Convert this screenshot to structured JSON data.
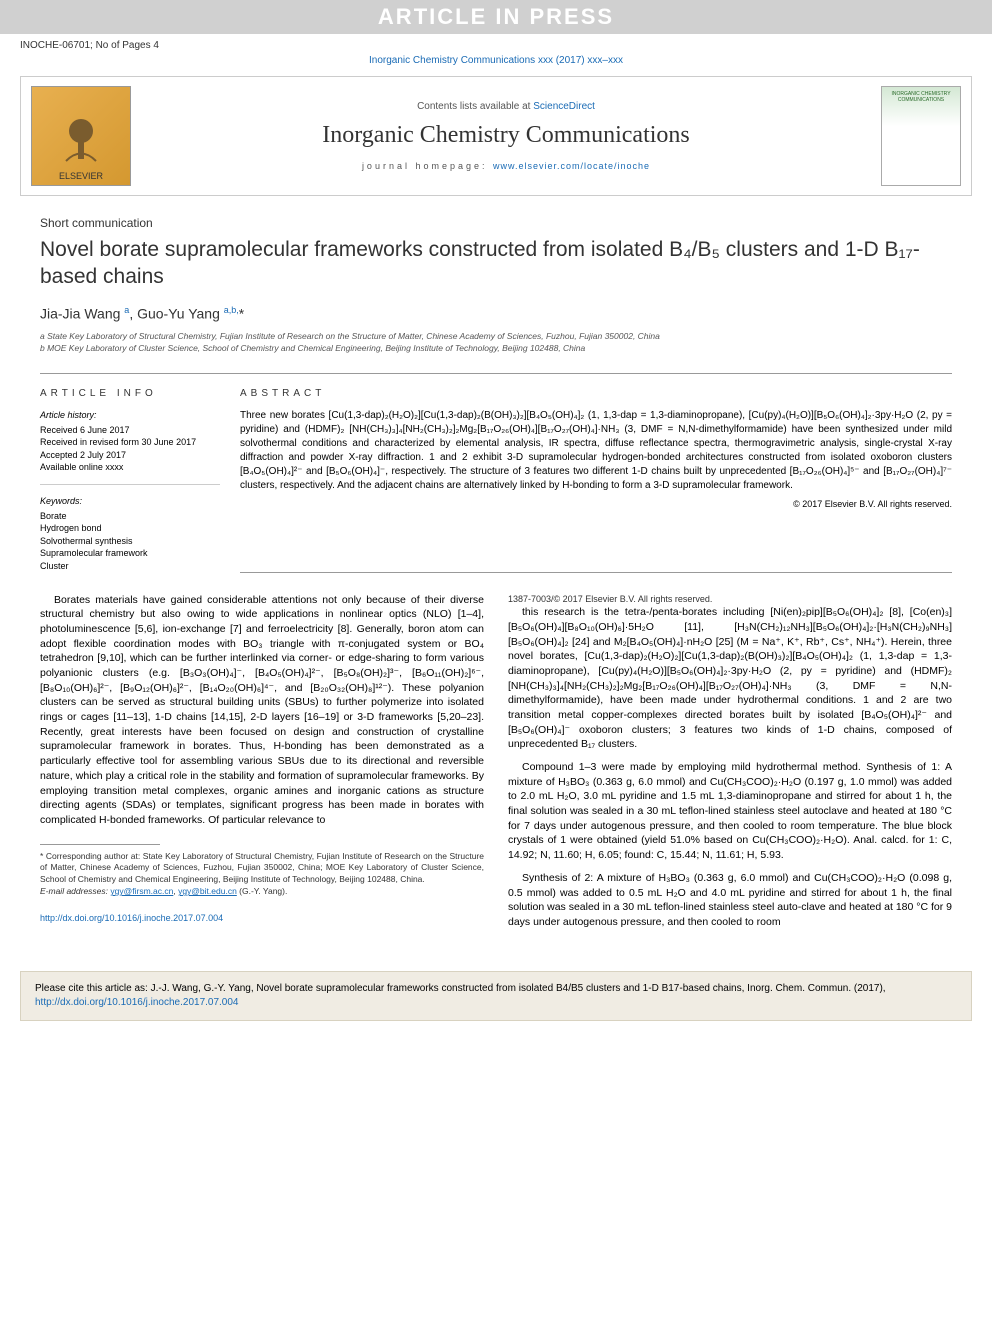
{
  "banner_text": "ARTICLE IN PRESS",
  "header": {
    "article_id": "INOCHE-06701; No of Pages 4",
    "journal_ref": "Inorganic Chemistry Communications xxx (2017) xxx–xxx"
  },
  "journal_banner": {
    "elsevier_label": "ELSEVIER",
    "contents_prefix": "Contents lists available at ",
    "contents_link": "ScienceDirect",
    "journal_name": "Inorganic Chemistry Communications",
    "homepage_prefix": "journal homepage: ",
    "homepage_url": "www.elsevier.com/locate/inoche",
    "cover_text": "INORGANIC CHEMISTRY COMMUNICATIONS"
  },
  "article": {
    "type": "Short communication",
    "title": "Novel borate supramolecular frameworks constructed from isolated B₄/B₅ clusters and 1-D B₁₇-based chains",
    "authors_html": "Jia-Jia Wang <sup>a</sup>, Guo-Yu Yang <sup>a,b,</sup>*",
    "affiliations": [
      "a State Key Laboratory of Structural Chemistry, Fujian Institute of Research on the Structure of Matter, Chinese Academy of Sciences, Fuzhou, Fujian 350002, China",
      "b MOE Key Laboratory of Cluster Science, School of Chemistry and Chemical Engineering, Beijing Institute of Technology, Beijing 102488, China"
    ]
  },
  "article_info": {
    "heading": "ARTICLE INFO",
    "history_label": "Article history:",
    "history": [
      "Received 6 June 2017",
      "Received in revised form 30 June 2017",
      "Accepted 2 July 2017",
      "Available online xxxx"
    ],
    "keywords_label": "Keywords:",
    "keywords": [
      "Borate",
      "Hydrogen bond",
      "Solvothermal synthesis",
      "Supramolecular framework",
      "Cluster"
    ]
  },
  "abstract": {
    "heading": "ABSTRACT",
    "text": "Three new borates [Cu(1,3-dap)₂(H₂O)₂][Cu(1,3-dap)₂(B(OH)₃)₂][B₄O₅(OH)₄]₂ (1, 1,3-dap = 1,3-diaminopropane), [Cu(py)₄(H₂O)][B₅O₆(OH)₄]₂·3py·H₂O (2, py = pyridine) and (HDMF)₂ [NH(CH₃)₃]₄[NH₂(CH₃)₂]₂Mg₂[B₁₇O₂₆(OH)₄][B₁₇O₂₇(OH)₄]·NH₃ (3, DMF = N,N-dimethylformamide) have been synthesized under mild solvothermal conditions and characterized by elemental analysis, IR spectra, diffuse reflectance spectra, thermogravimetric analysis, single-crystal X-ray diffraction and powder X-ray diffraction. 1 and 2 exhibit 3-D supramolecular hydrogen-bonded architectures constructed from isolated oxoboron clusters [B₄O₅(OH)₄]²⁻ and [B₅O₆(OH)₄]⁻, respectively. The structure of 3 features two different 1-D chains built by unprecedented [B₁₇O₂₆(OH)₄]⁵⁻ and [B₁₇O₂₇(OH)₄]⁷⁻ clusters, respectively. And the adjacent chains are alternatively linked by H-bonding to form a 3-D supramolecular framework.",
    "copyright": "© 2017 Elsevier B.V. All rights reserved."
  },
  "body": {
    "p1": "Borates materials have gained considerable attentions not only because of their diverse structural chemistry but also owing to wide applications in nonlinear optics (NLO) [1–4], photoluminescence [5,6], ion-exchange [7] and ferroelectricity [8]. Generally, boron atom can adopt flexible coordination modes with BO₃ triangle with π-conjugated system or BO₄ tetrahedron [9,10], which can be further interlinked via corner- or edge-sharing to form various polyanionic clusters (e.g. [B₃O₃(OH)₄]⁻, [B₄O₅(OH)₄]²⁻, [B₅O₈(OH)₂]³⁻, [B₆O₁₁(OH)₂]⁶⁻, [B₈O₁₀(OH)₆]²⁻, [B₉O₁₂(OH)₆]²⁻, [B₁₄O₂₀(OH)₆]⁴⁻, and [B₂₀O₃₂(OH)₈]¹²⁻). These polyanion clusters can be served as structural building units (SBUs) to further polymerize into isolated rings or cages [11–13], 1-D chains [14,15], 2-D layers [16–19] or 3-D frameworks [5,20–23]. Recently, great interests have been focused on design and construction of crystalline supramolecular framework in borates. Thus, H-bonding has been demonstrated as a particularly effective tool for assembling various SBUs due to its directional and reversible nature, which play a critical role in the stability and formation of supramolecular frameworks. By employing transition metal complexes, organic amines and inorganic cations as structure directing agents (SDAs) or templates, significant progress has been made in borates with complicated H-bonded frameworks. Of particular relevance to",
    "p2": "this research is the tetra-/penta-borates including [Ni(en)₂pip][B₅O₆(OH)₄]₂ [8], [Co(en)₃][B₅O₆(OH)₄][B₈O₁₀(OH)₆]·5H₂O [11], [H₃N(CH₂)₁₂NH₃][B₅O₆(OH)₄]₂·[H₃N(CH₂)₉NH₃][B₅O₆(OH)₄]₂ [24] and M₂[B₄O₅(OH)₄]·nH₂O [25] (M = Na⁺, K⁺, Rb⁺, Cs⁺, NH₄⁺). Herein, three novel borates, [Cu(1,3-dap)₂(H₂O)₂][Cu(1,3-dap)₂(B(OH)₃)₂][B₄O₅(OH)₄]₂ (1, 1,3-dap = 1,3-diaminopropane), [Cu(py)₄(H₂O)][B₅O₆(OH)₄]₂·3py·H₂O (2, py = pyridine) and (HDMF)₂ [NH(CH₃)₃]₄[NH₂(CH₃)₂]₂Mg₂[B₁₇O₂₆(OH)₄][B₁₇O₂₇(OH)₄]·NH₃ (3, DMF = N,N-dimethylformamide), have been made under hydrothermal conditions. 1 and 2 are two transition metal copper-complexes directed borates built by isolated [B₄O₅(OH)₄]²⁻ and [B₅O₆(OH)₄]⁻ oxoboron clusters; 3 features two kinds of 1-D chains, composed of unprecedented B₁₇ clusters.",
    "p3": "Compound 1–3 were made by employing mild hydrothermal method. Synthesis of 1: A mixture of H₃BO₃ (0.363 g, 6.0 mmol) and Cu(CH₃COO)₂·H₂O (0.197 g, 1.0 mmol) was added to 2.0 mL H₂O, 3.0 mL pyridine and 1.5 mL 1,3-diaminopropane and stirred for about 1 h, the final solution was sealed in a 30 mL teflon-lined stainless steel autoclave and heated at 180 °C for 7 days under autogenous pressure, and then cooled to room temperature. The blue block crystals of 1 were obtained (yield 51.0% based on Cu(CH₃COO)₂·H₂O). Anal. calcd. for 1: C, 14.92; N, 11.60; H, 6.05; found: C, 15.44; N, 11.61; H, 5.93.",
    "p4": "Synthesis of 2: A mixture of H₃BO₃ (0.363 g, 6.0 mmol) and Cu(CH₃COO)₂·H₂O (0.098 g, 0.5 mmol) was added to 0.5 mL H₂O and 4.0 mL pyridine and stirred for about 1 h, the final solution was sealed in a 30 mL teflon-lined stainless steel auto-clave and heated at 180 °C for 9 days under autogenous pressure, and then cooled to room"
  },
  "footnotes": {
    "corresponding": "* Corresponding author at: State Key Laboratory of Structural Chemistry, Fujian Institute of Research on the Structure of Matter, Chinese Academy of Sciences, Fuzhou, Fujian 350002, China; MOE Key Laboratory of Cluster Science, School of Chemistry and Chemical Engineering, Beijing Institute of Technology, Beijing 102488, China.",
    "email_label": "E-mail addresses: ",
    "email1": "ygy@firsm.ac.cn",
    "email2": "ygy@bit.edu.cn",
    "email_suffix": " (G.-Y. Yang)."
  },
  "doi": {
    "url": "http://dx.doi.org/10.1016/j.inoche.2017.07.004",
    "issn_line": "1387-7003/© 2017 Elsevier B.V. All rights reserved."
  },
  "citation_box": {
    "text": "Please cite this article as: J.-J. Wang, G.-Y. Yang, Novel borate supramolecular frameworks constructed from isolated B4/B5 clusters and 1-D B17-based chains, Inorg. Chem. Commun. (2017), ",
    "link": "http://dx.doi.org/10.1016/j.inoche.2017.07.004"
  },
  "colors": {
    "link": "#1a6bb5",
    "banner_bg": "#d0d0d0",
    "banner_fg": "#ffffff",
    "citation_bg": "#f0ece3",
    "border": "#999999"
  }
}
